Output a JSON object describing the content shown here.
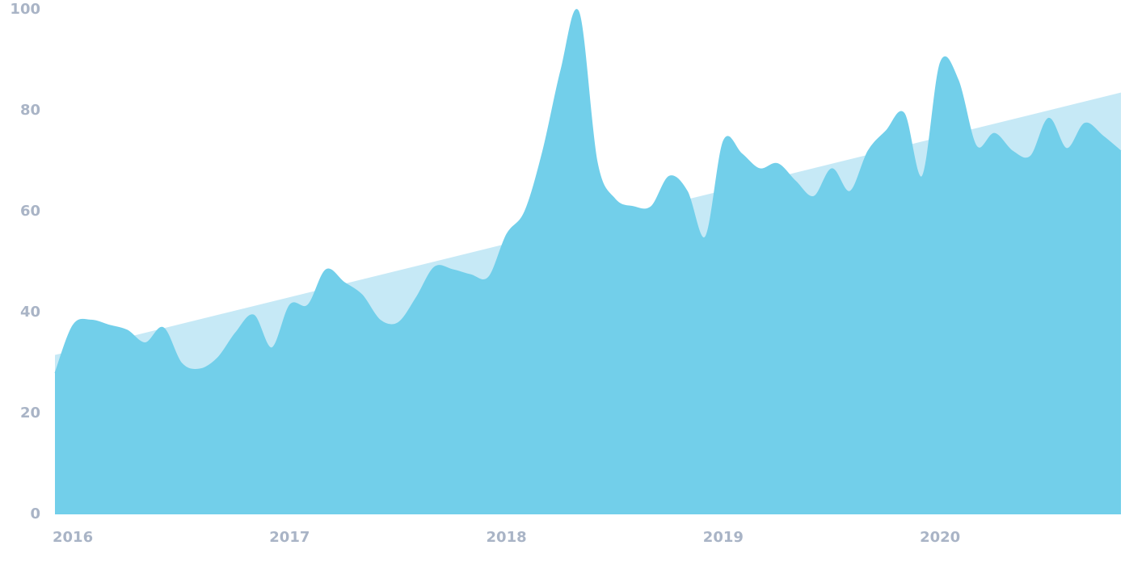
{
  "chart_data": {
    "type": "area",
    "x": [
      2016.0,
      2016.0833,
      2016.1667,
      2016.25,
      2016.3333,
      2016.4167,
      2016.5,
      2016.5833,
      2016.6667,
      2016.75,
      2016.8333,
      2016.9167,
      2017.0,
      2017.0833,
      2017.1667,
      2017.25,
      2017.3333,
      2017.4167,
      2017.5,
      2017.5833,
      2017.6667,
      2017.75,
      2017.8333,
      2017.9167,
      2018.0,
      2018.0833,
      2018.1667,
      2018.25,
      2018.3333,
      2018.4167,
      2018.5,
      2018.5833,
      2018.6667,
      2018.75,
      2018.8333,
      2018.9167,
      2019.0,
      2019.0833,
      2019.1667,
      2019.25,
      2019.3333,
      2019.4167,
      2019.5,
      2019.5833,
      2019.6667,
      2019.75,
      2019.8333,
      2019.9167,
      2020.0,
      2020.0833,
      2020.1667,
      2020.25,
      2020.3333,
      2020.4167,
      2020.5,
      2020.5833,
      2020.6667,
      2020.75,
      2020.8333,
      2020.9167
    ],
    "series": [
      {
        "color": "#c6e9f6",
        "x": [
          2016.0,
          2020.9167
        ],
        "values": [
          31.5,
          83.5
        ]
      },
      {
        "color": "#72cfea",
        "values": [
          28,
          37.5,
          38.5,
          37.5,
          36.5,
          34,
          37,
          30,
          28.8,
          31,
          36,
          39.5,
          33,
          41.5,
          41.5,
          48.5,
          46,
          43.5,
          38.5,
          38,
          43,
          49,
          48.5,
          47.5,
          47,
          55.5,
          60,
          72,
          88,
          99.5,
          70,
          62.5,
          61,
          61,
          67,
          64,
          55,
          74,
          71.5,
          68.5,
          69.5,
          66,
          63,
          68.5,
          64,
          72,
          76,
          79.5,
          67,
          89.5,
          86,
          73,
          75.5,
          72,
          71,
          78.5,
          72.5,
          77.5,
          75,
          72
        ]
      }
    ],
    "xlim": [
      2016.0,
      2020.9167
    ],
    "xticks": [
      2016,
      2017,
      2018,
      2019,
      2020
    ],
    "ylim": [
      0,
      100
    ],
    "yticks": [
      0,
      20,
      40,
      60,
      80,
      100
    ],
    "grid": false
  }
}
